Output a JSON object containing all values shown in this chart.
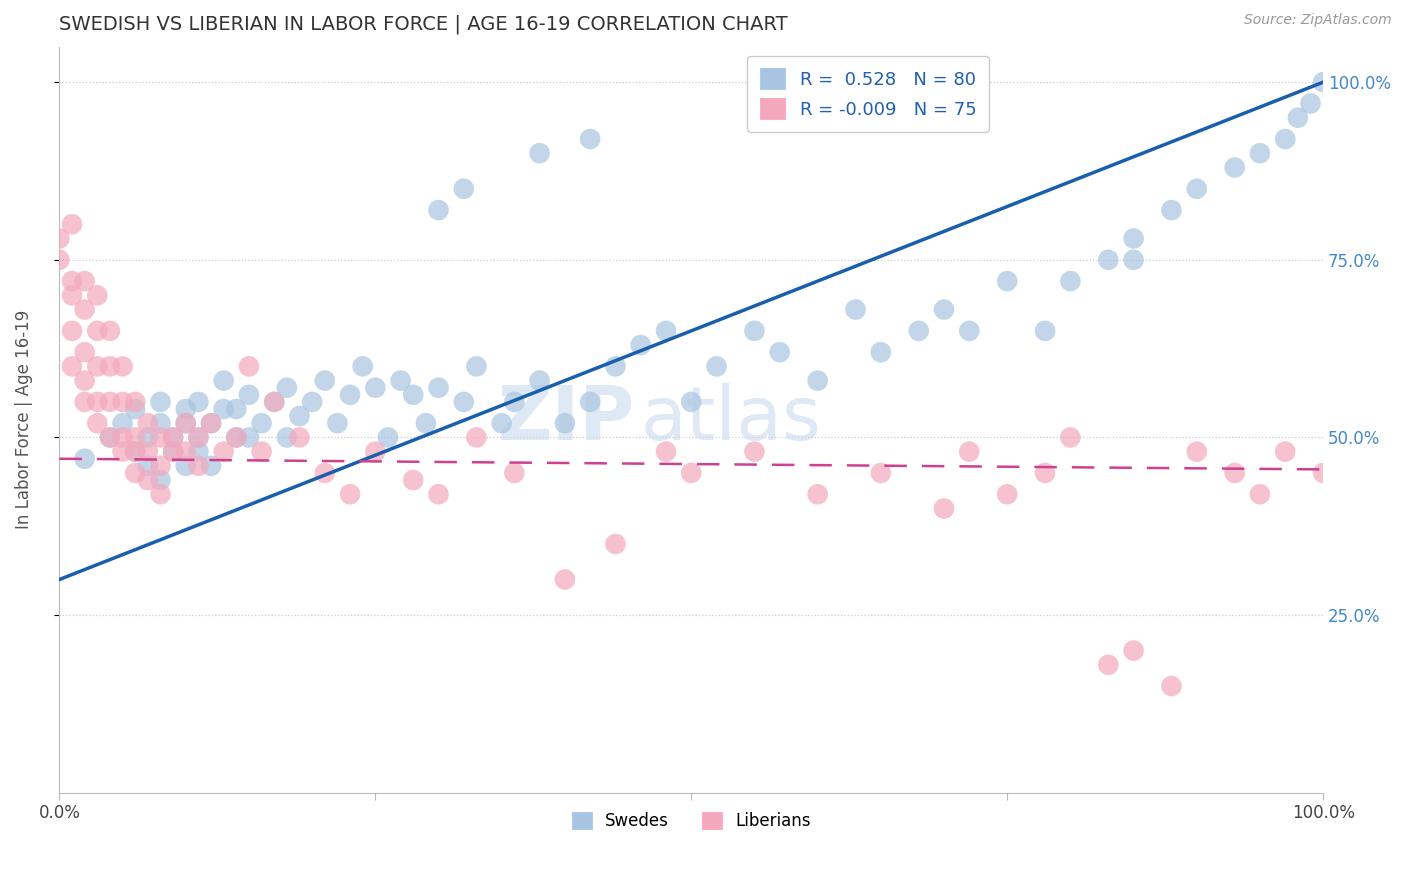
{
  "title": "SWEDISH VS LIBERIAN IN LABOR FORCE | AGE 16-19 CORRELATION CHART",
  "source": "Source: ZipAtlas.com",
  "ylabel": "In Labor Force | Age 16-19",
  "xlim": [
    0.0,
    1.0
  ],
  "ylim": [
    0.0,
    1.05
  ],
  "blue_R": 0.528,
  "blue_N": 80,
  "pink_R": -0.009,
  "pink_N": 75,
  "blue_color": "#A8C4E0",
  "pink_color": "#F4A8BC",
  "blue_line_color": "#1A5FAB",
  "pink_line_color": "#D04090",
  "watermark_zip": "ZIP",
  "watermark_atlas": "atlas",
  "legend_label_blue": "Swedes",
  "legend_label_pink": "Liberians",
  "blue_x": [
    0.02,
    0.04,
    0.05,
    0.06,
    0.06,
    0.07,
    0.07,
    0.08,
    0.08,
    0.08,
    0.09,
    0.09,
    0.1,
    0.1,
    0.1,
    0.11,
    0.11,
    0.11,
    0.12,
    0.12,
    0.13,
    0.13,
    0.14,
    0.14,
    0.15,
    0.15,
    0.16,
    0.17,
    0.18,
    0.18,
    0.19,
    0.2,
    0.21,
    0.22,
    0.23,
    0.24,
    0.25,
    0.26,
    0.27,
    0.28,
    0.29,
    0.3,
    0.32,
    0.33,
    0.35,
    0.36,
    0.38,
    0.4,
    0.42,
    0.44,
    0.46,
    0.48,
    0.5,
    0.52,
    0.55,
    0.57,
    0.6,
    0.63,
    0.65,
    0.68,
    0.7,
    0.72,
    0.75,
    0.78,
    0.8,
    0.83,
    0.85,
    0.88,
    0.9,
    0.93,
    0.95,
    0.97,
    0.98,
    0.99,
    1.0,
    0.3,
    0.32,
    0.38,
    0.42,
    0.85
  ],
  "blue_y": [
    0.47,
    0.5,
    0.52,
    0.48,
    0.54,
    0.5,
    0.46,
    0.52,
    0.55,
    0.44,
    0.5,
    0.48,
    0.52,
    0.46,
    0.54,
    0.5,
    0.48,
    0.55,
    0.52,
    0.46,
    0.54,
    0.58,
    0.5,
    0.54,
    0.56,
    0.5,
    0.52,
    0.55,
    0.57,
    0.5,
    0.53,
    0.55,
    0.58,
    0.52,
    0.56,
    0.6,
    0.57,
    0.5,
    0.58,
    0.56,
    0.52,
    0.57,
    0.55,
    0.6,
    0.52,
    0.55,
    0.58,
    0.52,
    0.55,
    0.6,
    0.63,
    0.65,
    0.55,
    0.6,
    0.65,
    0.62,
    0.58,
    0.68,
    0.62,
    0.65,
    0.68,
    0.65,
    0.72,
    0.65,
    0.72,
    0.75,
    0.78,
    0.82,
    0.85,
    0.88,
    0.9,
    0.92,
    0.95,
    0.97,
    1.0,
    0.82,
    0.85,
    0.9,
    0.92,
    0.75
  ],
  "pink_x": [
    0.0,
    0.0,
    0.01,
    0.01,
    0.01,
    0.01,
    0.01,
    0.02,
    0.02,
    0.02,
    0.02,
    0.02,
    0.03,
    0.03,
    0.03,
    0.03,
    0.03,
    0.04,
    0.04,
    0.04,
    0.04,
    0.05,
    0.05,
    0.05,
    0.05,
    0.06,
    0.06,
    0.06,
    0.06,
    0.07,
    0.07,
    0.07,
    0.08,
    0.08,
    0.08,
    0.09,
    0.09,
    0.1,
    0.1,
    0.11,
    0.11,
    0.12,
    0.13,
    0.14,
    0.15,
    0.16,
    0.17,
    0.19,
    0.21,
    0.23,
    0.25,
    0.28,
    0.3,
    0.33,
    0.36,
    0.4,
    0.44,
    0.48,
    0.5,
    0.55,
    0.6,
    0.65,
    0.7,
    0.72,
    0.75,
    0.78,
    0.8,
    0.83,
    0.85,
    0.88,
    0.9,
    0.93,
    0.95,
    0.97,
    1.0
  ],
  "pink_y": [
    0.75,
    0.78,
    0.72,
    0.8,
    0.65,
    0.7,
    0.6,
    0.62,
    0.68,
    0.72,
    0.55,
    0.58,
    0.65,
    0.7,
    0.6,
    0.55,
    0.52,
    0.6,
    0.55,
    0.5,
    0.65,
    0.55,
    0.6,
    0.5,
    0.48,
    0.55,
    0.5,
    0.48,
    0.45,
    0.52,
    0.48,
    0.44,
    0.5,
    0.46,
    0.42,
    0.5,
    0.48,
    0.52,
    0.48,
    0.5,
    0.46,
    0.52,
    0.48,
    0.5,
    0.6,
    0.48,
    0.55,
    0.5,
    0.45,
    0.42,
    0.48,
    0.44,
    0.42,
    0.5,
    0.45,
    0.3,
    0.35,
    0.48,
    0.45,
    0.48,
    0.42,
    0.45,
    0.4,
    0.48,
    0.42,
    0.45,
    0.5,
    0.18,
    0.2,
    0.15,
    0.48,
    0.45,
    0.42,
    0.48,
    0.45
  ],
  "blue_line_x": [
    0.0,
    1.0
  ],
  "blue_line_y": [
    0.3,
    1.0
  ],
  "pink_line_x": [
    0.0,
    1.0
  ],
  "pink_line_y": [
    0.47,
    0.455
  ]
}
